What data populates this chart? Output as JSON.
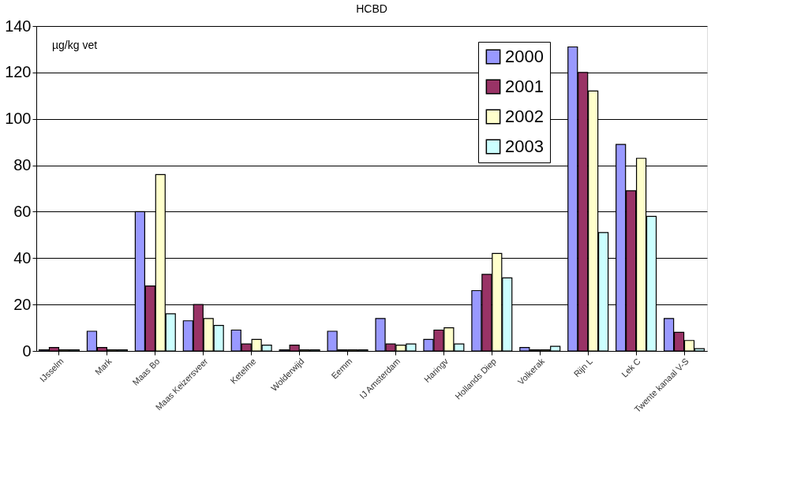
{
  "chart_data": {
    "type": "bar",
    "title": "HCBD",
    "categories": [
      "IJsselm",
      "Mark",
      "Maas Bo",
      "Maas Keizersveer",
      "Ketelme",
      "Wolderwijd",
      "Eemm",
      "IJ Amsterdam",
      "Haringv",
      "Hollands Diep",
      "Volkerak",
      "Rijn L",
      "Lek C",
      "Twente kanaal V-S"
    ],
    "series": [
      {
        "name": "2000",
        "color": "#9999ff",
        "values": [
          0.5,
          8.5,
          60,
          13,
          9,
          0.5,
          8.5,
          14,
          5,
          26,
          1.5,
          131,
          89,
          14
        ]
      },
      {
        "name": "2001",
        "color": "#993366",
        "values": [
          1.5,
          1.5,
          28,
          20,
          3,
          2.5,
          0.5,
          3,
          9,
          33,
          0.5,
          120,
          69,
          8
        ]
      },
      {
        "name": "2002",
        "color": "#ffffcc",
        "values": [
          0.5,
          0.5,
          76,
          14,
          5,
          0.5,
          0.5,
          2.5,
          10,
          42,
          0.5,
          112,
          83,
          4.5
        ]
      },
      {
        "name": "2003",
        "color": "#ccffff",
        "values": [
          0.5,
          0.5,
          16,
          11,
          2.5,
          0.5,
          0.5,
          3,
          3,
          31.5,
          2,
          51,
          58,
          1
        ]
      }
    ],
    "ylim": [
      0,
      140
    ],
    "yticks": [
      0,
      20,
      40,
      60,
      80,
      100,
      120,
      140
    ],
    "annotations": [
      "µg/kg vet"
    ],
    "grid": "y",
    "legend": "top right"
  }
}
